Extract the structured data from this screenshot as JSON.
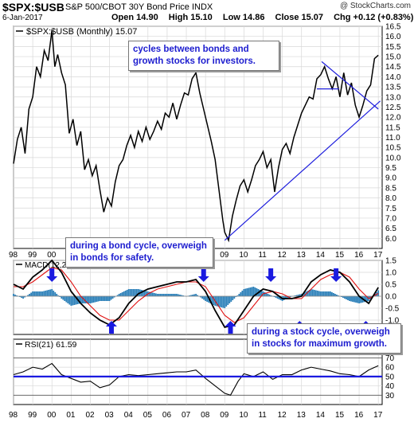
{
  "header": {
    "ticker": "$SPX:$USB",
    "name": "S&P 500/CBOT 30Y Bond Price INDX",
    "brand": "@ StockCharts.com",
    "date": "6-Jan-2017",
    "open": "Open 14.90",
    "high": "High 15.10",
    "low": "Low 14.86",
    "close": "Close 15.07",
    "chg": "Chg +0.12 (+0.83%)",
    "chg_arrow": "▲"
  },
  "annotations": {
    "cycles": "cycles between bonds and growth stocks for investors.",
    "bond": "during a bond cycle, overweigh in bonds for safety.",
    "stock": "during a stock cycle, overweigh in stocks for maximum growth."
  },
  "chart_data": [
    {
      "type": "line",
      "legend": "$SPX:$USB (Monthly) 15.07",
      "ylim": [
        5.5,
        16.5
      ],
      "y_ticks": [
        "6.0",
        "6.5",
        "7.0",
        "7.5",
        "8.0",
        "8.5",
        "9.0",
        "9.5",
        "10.0",
        "10.5",
        "11.0",
        "11.5",
        "12.0",
        "12.5",
        "13.0",
        "13.5",
        "14.0",
        "14.5",
        "15.0",
        "15.5",
        "16.0",
        "16.5"
      ],
      "x_ticks": [
        "98",
        "99",
        "00",
        "01",
        "02",
        "03",
        "04",
        "05",
        "06",
        "07",
        "08",
        "09",
        "10",
        "11",
        "12",
        "13",
        "14",
        "15",
        "16",
        "17"
      ],
      "series": [
        {
          "x": [
            1998.0,
            1998.2,
            1998.4,
            1998.6,
            1998.8,
            1999.0,
            1999.2,
            1999.4,
            1999.6,
            1999.8,
            2000.0,
            2000.15,
            2000.3,
            2000.5,
            2000.7,
            2000.9,
            2001.1,
            2001.3,
            2001.5,
            2001.7,
            2001.9,
            2002.1,
            2002.3,
            2002.5,
            2002.7,
            2002.9,
            2003.1,
            2003.3,
            2003.5,
            2003.7,
            2003.9,
            2004.1,
            2004.3,
            2004.5,
            2004.7,
            2004.9,
            2005.1,
            2005.3,
            2005.5,
            2005.7,
            2005.9,
            2006.1,
            2006.3,
            2006.5,
            2006.7,
            2006.9,
            2007.1,
            2007.3,
            2007.5,
            2007.7,
            2007.9,
            2008.1,
            2008.3,
            2008.5,
            2008.7,
            2008.9,
            2009.0,
            2009.2,
            2009.4,
            2009.6,
            2009.8,
            2010.0,
            2010.2,
            2010.4,
            2010.6,
            2010.8,
            2011.0,
            2011.2,
            2011.4,
            2011.6,
            2011.8,
            2012.0,
            2012.2,
            2012.4,
            2012.6,
            2012.8,
            2013.0,
            2013.2,
            2013.4,
            2013.6,
            2013.8,
            2014.0,
            2014.2,
            2014.4,
            2014.6,
            2014.8,
            2015.0,
            2015.2,
            2015.4,
            2015.6,
            2015.8,
            2016.0,
            2016.2,
            2016.4,
            2016.6,
            2016.8,
            2017.0
          ],
          "y": [
            9.7,
            10.9,
            11.5,
            10.2,
            12.4,
            13.0,
            14.5,
            14.0,
            15.3,
            14.8,
            16.3,
            14.5,
            15.1,
            14.2,
            13.6,
            11.2,
            11.9,
            10.6,
            11.3,
            9.4,
            9.9,
            9.1,
            9.6,
            8.4,
            7.3,
            8.0,
            7.6,
            8.8,
            9.6,
            9.9,
            10.6,
            11.1,
            10.5,
            11.3,
            10.8,
            11.5,
            10.9,
            11.3,
            11.8,
            11.4,
            12.2,
            12.0,
            12.7,
            11.9,
            12.6,
            13.2,
            13.1,
            13.9,
            14.2,
            13.2,
            12.4,
            11.6,
            10.8,
            9.9,
            8.4,
            6.9,
            6.3,
            5.9,
            7.1,
            7.9,
            8.6,
            8.9,
            8.3,
            8.9,
            9.6,
            9.9,
            10.3,
            9.5,
            9.9,
            8.3,
            9.5,
            10.4,
            10.7,
            10.2,
            11.0,
            11.6,
            12.2,
            12.6,
            13.0,
            12.9,
            13.9,
            14.1,
            14.5,
            13.9,
            13.4,
            14.0,
            13.0,
            14.2,
            13.1,
            13.7,
            12.6,
            12.0,
            12.6,
            13.3,
            13.6,
            14.9,
            15.07
          ]
        }
      ],
      "trendlines": [
        {
          "from": [
            2009.0,
            5.9
          ],
          "to": [
            2017.1,
            12.8
          ]
        },
        {
          "from": [
            2014.05,
            14.75
          ],
          "to": [
            2017.0,
            12.4
          ]
        },
        {
          "from": [
            2013.8,
            13.4
          ],
          "to": [
            2014.95,
            13.4
          ]
        }
      ]
    },
    {
      "type": "line",
      "legend_prefix": "MACD(12,26,9)",
      "legend_values": [
        "0.368,",
        "0.118,",
        "0.250"
      ],
      "legend_colors": [
        "#000000",
        "#e01010",
        "#1f7fc0"
      ],
      "ylim": [
        -1.6,
        1.5
      ],
      "y_ticks": [
        "1.5",
        "1.0",
        "0.5",
        "0.0",
        "-0.5",
        "-1.0"
      ],
      "series": [
        {
          "x": [
            1998.0,
            1998.5,
            1999.0,
            1999.5,
            2000.0,
            2000.5,
            2001.0,
            2001.5,
            2002.0,
            2002.5,
            2003.0,
            2003.5,
            2004.0,
            2004.5,
            2005.0,
            2005.5,
            2006.0,
            2006.5,
            2007.0,
            2007.5,
            2008.0,
            2008.5,
            2009.0,
            2009.5,
            2010.0,
            2010.5,
            2011.0,
            2011.5,
            2012.0,
            2012.5,
            2013.0,
            2013.5,
            2014.0,
            2014.5,
            2015.0,
            2015.5,
            2016.0,
            2016.5,
            2017.0
          ],
          "y": [
            0.5,
            0.3,
            0.8,
            1.1,
            1.5,
            1.0,
            0.2,
            -0.3,
            -0.7,
            -1.0,
            -1.2,
            -0.9,
            -0.3,
            0.1,
            0.3,
            0.4,
            0.5,
            0.6,
            0.6,
            0.7,
            0.2,
            -0.6,
            -1.3,
            -1.2,
            -0.6,
            0.0,
            0.3,
            0.2,
            -0.1,
            -0.1,
            0.0,
            0.6,
            0.9,
            1.1,
            1.0,
            0.6,
            0.0,
            -0.3,
            0.368
          ]
        },
        {
          "x": [
            1998.0,
            1998.5,
            1999.0,
            1999.5,
            2000.0,
            2000.5,
            2001.0,
            2001.5,
            2002.0,
            2002.5,
            2003.0,
            2003.5,
            2004.0,
            2004.5,
            2005.0,
            2005.5,
            2006.0,
            2006.5,
            2007.0,
            2007.5,
            2008.0,
            2008.5,
            2009.0,
            2009.5,
            2010.0,
            2010.5,
            2011.0,
            2011.5,
            2012.0,
            2012.5,
            2013.0,
            2013.5,
            2014.0,
            2014.5,
            2015.0,
            2015.5,
            2016.0,
            2016.5,
            2017.0
          ],
          "y": [
            0.4,
            0.4,
            0.6,
            0.9,
            1.2,
            1.1,
            0.6,
            0.0,
            -0.4,
            -0.8,
            -1.0,
            -1.0,
            -0.6,
            -0.2,
            0.1,
            0.3,
            0.4,
            0.5,
            0.6,
            0.6,
            0.4,
            -0.2,
            -0.8,
            -1.1,
            -0.9,
            -0.4,
            0.1,
            0.2,
            0.1,
            -0.1,
            -0.1,
            0.3,
            0.7,
            0.9,
            1.0,
            0.8,
            0.3,
            -0.1,
            0.118
          ]
        }
      ],
      "arrows": [
        {
          "x": 2000.0,
          "dir": "down"
        },
        {
          "x": 2003.1,
          "dir": "up"
        },
        {
          "x": 2007.9,
          "dir": "down"
        },
        {
          "x": 2009.3,
          "dir": "up"
        },
        {
          "x": 2011.4,
          "dir": "down"
        },
        {
          "x": 2012.9,
          "dir": "up"
        },
        {
          "x": 2014.8,
          "dir": "down"
        },
        {
          "x": 2016.35,
          "dir": "up"
        }
      ]
    },
    {
      "type": "line",
      "legend_prefix": "RSI(21)",
      "legend_value": "61.59",
      "ylim": [
        20,
        90
      ],
      "y_ticks": [
        "70",
        "60",
        "50",
        "40",
        "30"
      ],
      "reference_line": 50,
      "series": [
        {
          "x": [
            1998.0,
            1998.5,
            1999.0,
            1999.5,
            2000.0,
            2000.5,
            2001.0,
            2001.5,
            2002.0,
            2002.5,
            2003.0,
            2003.5,
            2004.0,
            2004.5,
            2005.0,
            2005.5,
            2006.0,
            2006.5,
            2007.0,
            2007.5,
            2008.0,
            2008.5,
            2009.0,
            2009.3,
            2009.7,
            2010.0,
            2010.5,
            2011.0,
            2011.5,
            2012.0,
            2012.5,
            2013.0,
            2013.5,
            2014.0,
            2014.5,
            2015.0,
            2015.5,
            2016.0,
            2016.5,
            2017.0
          ],
          "y": [
            52,
            55,
            60,
            58,
            64,
            52,
            48,
            44,
            45,
            38,
            41,
            50,
            52,
            51,
            52,
            53,
            54,
            55,
            55,
            57,
            48,
            40,
            32,
            30,
            45,
            53,
            50,
            55,
            47,
            52,
            52,
            57,
            60,
            58,
            56,
            53,
            52,
            50,
            57,
            61.59
          ]
        }
      ]
    }
  ]
}
